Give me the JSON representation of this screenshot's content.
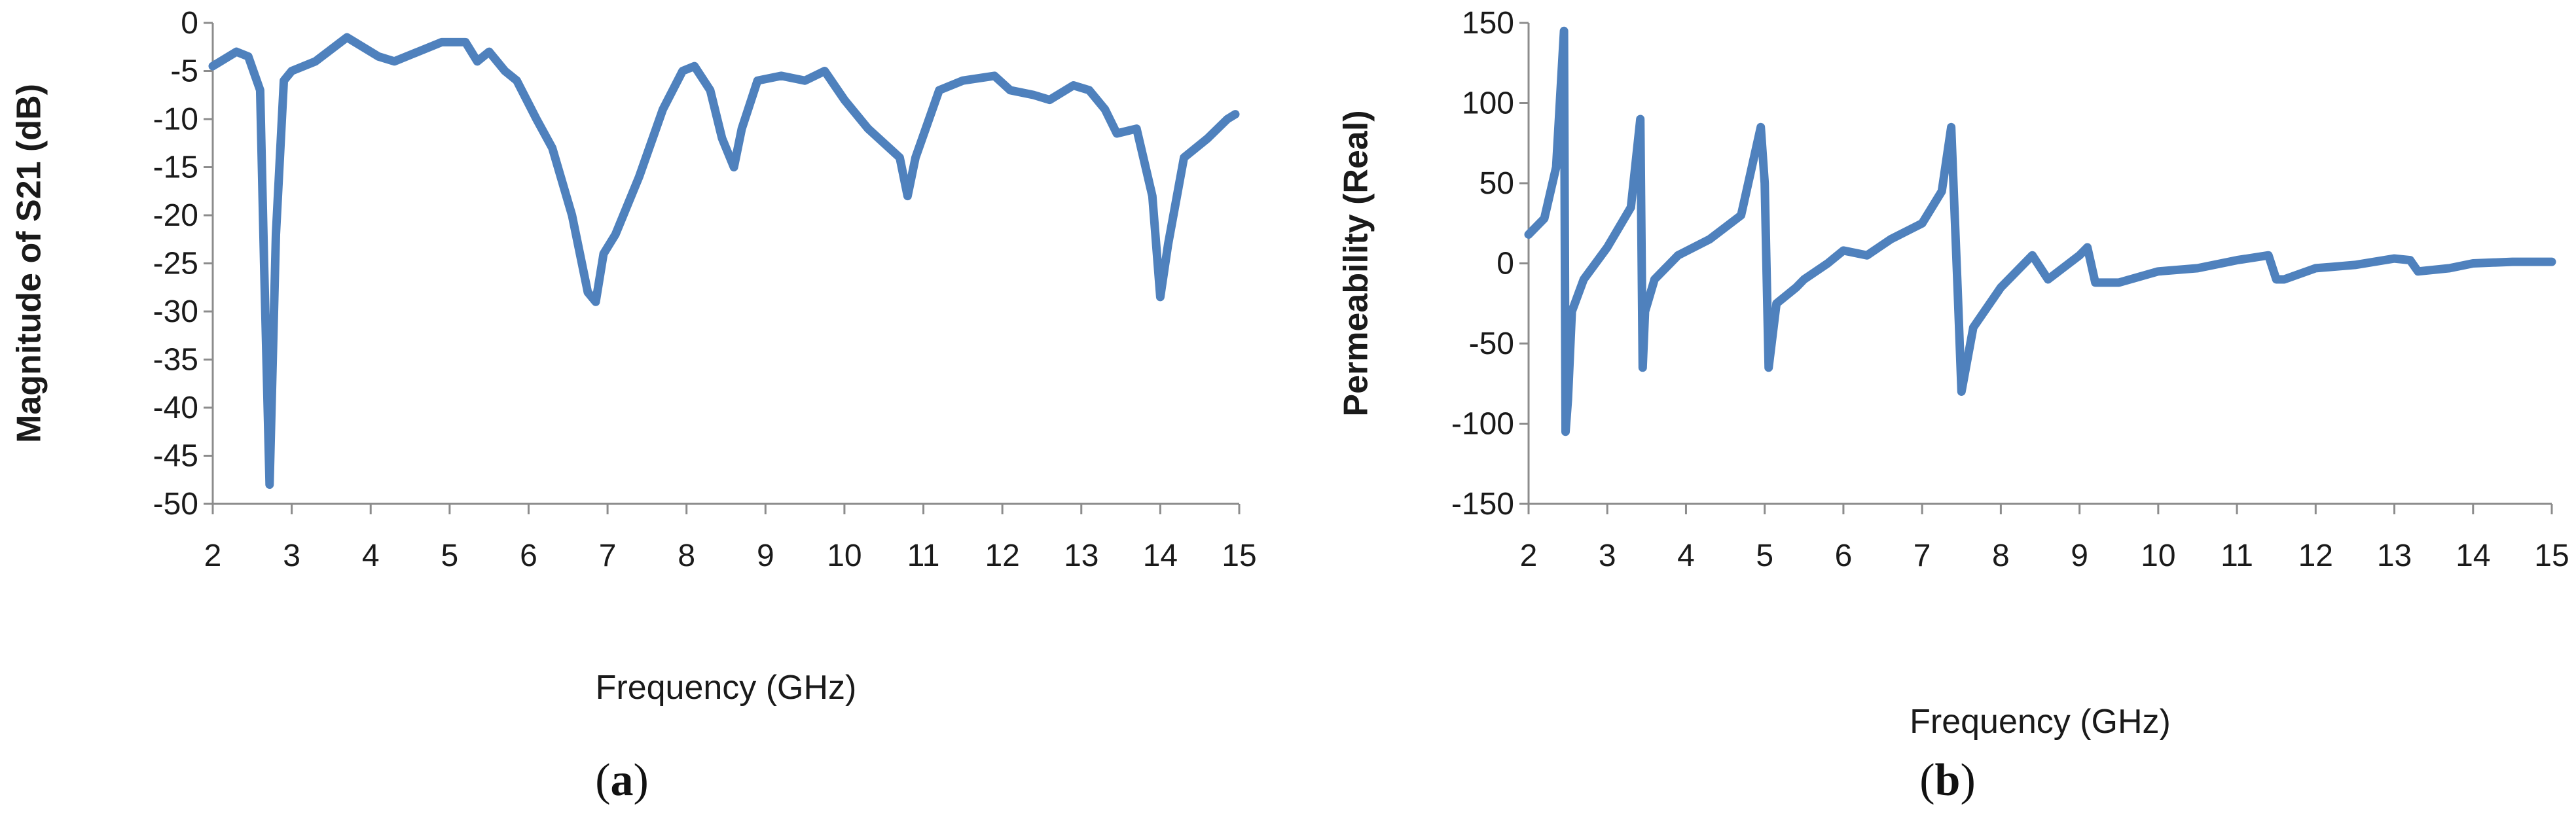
{
  "colors": {
    "series": "#4f81bd",
    "axis": "#8c8c8c",
    "text": "#1a1a1a"
  },
  "chart_data": [
    {
      "type": "line",
      "panel_label": "a",
      "xlabel": "Frequency (GHz)",
      "ylabel": "Magnitude of S21 (dB)",
      "xlim": [
        2,
        15
      ],
      "ylim": [
        -50,
        0
      ],
      "xticks": [
        2,
        3,
        4,
        5,
        6,
        7,
        8,
        9,
        10,
        11,
        12,
        13,
        14,
        15
      ],
      "yticks": [
        0,
        -5,
        -10,
        -15,
        -20,
        -25,
        -30,
        -35,
        -40,
        -45,
        -50
      ],
      "grid": false,
      "series": [
        {
          "x": [
            2.0,
            2.3,
            2.45,
            2.6,
            2.65,
            2.72,
            2.8,
            2.9,
            3.0,
            3.3,
            3.7,
            4.1,
            4.3,
            4.6,
            4.9,
            5.2,
            5.35,
            5.5,
            5.7,
            5.85,
            6.1,
            6.3,
            6.55,
            6.75,
            6.85,
            6.95,
            7.1,
            7.4,
            7.7,
            7.95,
            8.1,
            8.3,
            8.45,
            8.6,
            8.7,
            8.9,
            9.2,
            9.5,
            9.75,
            10.0,
            10.3,
            10.7,
            10.8,
            10.9,
            11.2,
            11.5,
            11.9,
            12.1,
            12.4,
            12.6,
            12.9,
            13.1,
            13.3,
            13.45,
            13.7,
            13.9,
            14.0,
            14.1,
            14.3,
            14.6,
            14.85,
            14.95
          ],
          "y": [
            -4.5,
            -3.0,
            -3.5,
            -7,
            -25,
            -48,
            -22,
            -6,
            -5,
            -4,
            -1.5,
            -3.5,
            -4,
            -3,
            -2,
            -2,
            -4,
            -3,
            -5,
            -6,
            -10,
            -13,
            -20,
            -28,
            -29,
            -24,
            -22,
            -16,
            -9,
            -5,
            -4.5,
            -7,
            -12,
            -15,
            -11,
            -6,
            -5.5,
            -6,
            -5,
            -8,
            -11,
            -14,
            -18,
            -14,
            -7,
            -6,
            -5.5,
            -7,
            -7.5,
            -8,
            -6.5,
            -7,
            -9,
            -11.5,
            -11,
            -18,
            -28.5,
            -23,
            -14,
            -12,
            -10,
            -9.5
          ]
        }
      ]
    },
    {
      "type": "line",
      "panel_label": "b",
      "xlabel": "Frequency (GHz)",
      "ylabel": "Permeability (Real)",
      "xlim": [
        2,
        15
      ],
      "ylim": [
        -150,
        150
      ],
      "xticks": [
        2,
        3,
        4,
        5,
        6,
        7,
        8,
        9,
        10,
        11,
        12,
        13,
        14,
        15
      ],
      "yticks": [
        150,
        100,
        50,
        0,
        -50,
        -100,
        -150
      ],
      "grid": false,
      "series": [
        {
          "x": [
            2.0,
            2.2,
            2.35,
            2.45,
            2.47,
            2.5,
            2.55,
            2.7,
            3.0,
            3.3,
            3.42,
            3.45,
            3.48,
            3.6,
            3.9,
            4.3,
            4.7,
            4.95,
            5.0,
            5.05,
            5.15,
            5.4,
            5.5,
            5.8,
            6.0,
            6.3,
            6.6,
            7.0,
            7.25,
            7.37,
            7.45,
            7.5,
            7.65,
            8.0,
            8.4,
            8.6,
            9.0,
            9.1,
            9.2,
            9.5,
            10.0,
            10.5,
            11.0,
            11.4,
            11.5,
            11.6,
            12.0,
            12.5,
            13.0,
            13.2,
            13.3,
            13.7,
            14.0,
            14.5,
            15.0
          ],
          "y": [
            18,
            28,
            60,
            145,
            -105,
            -85,
            -30,
            -10,
            10,
            35,
            90,
            -65,
            -30,
            -10,
            5,
            15,
            30,
            85,
            50,
            -65,
            -25,
            -15,
            -10,
            0,
            8,
            5,
            15,
            25,
            45,
            85,
            -15,
            -80,
            -40,
            -15,
            5,
            -10,
            5,
            10,
            -12,
            -12,
            -5,
            -3,
            2,
            5,
            -10,
            -10,
            -3,
            -1,
            3,
            2,
            -5,
            -3,
            0,
            1,
            1
          ]
        }
      ]
    }
  ]
}
